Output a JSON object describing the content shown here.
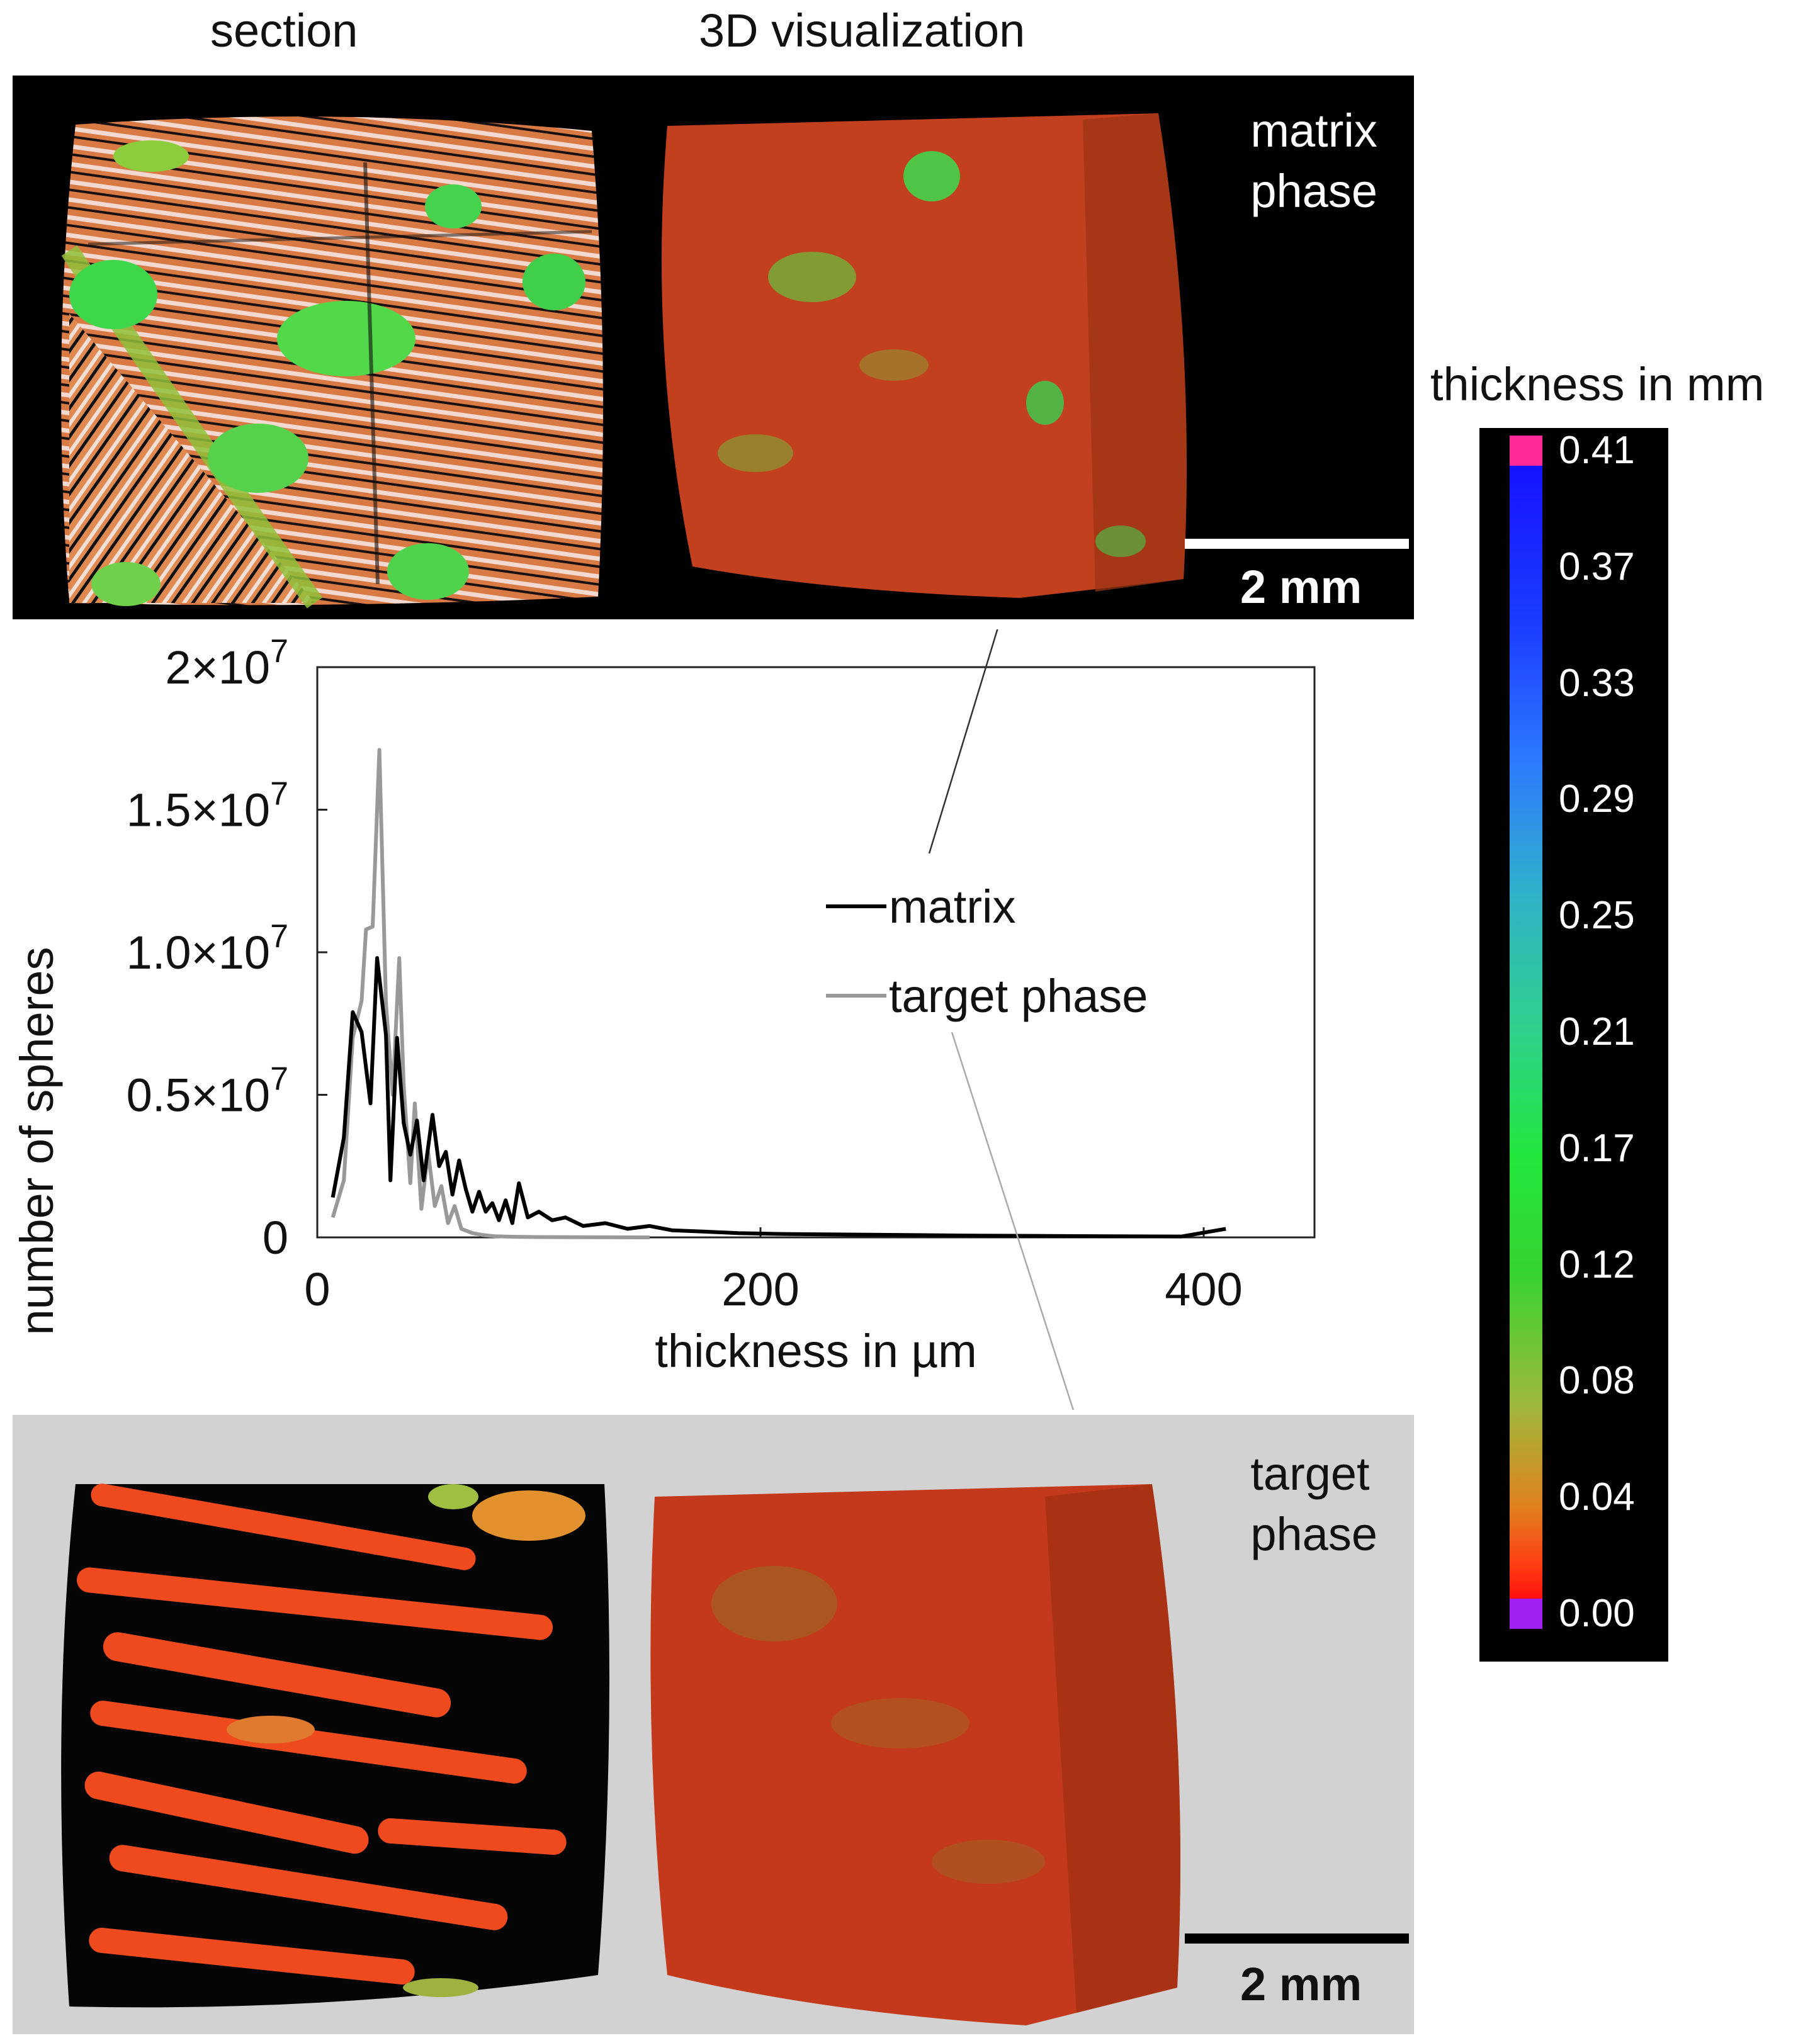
{
  "headers": {
    "section": "section",
    "visualization": "3D visualization"
  },
  "top_panel": {
    "label": "matrix\nphase",
    "scale_bar": "2 mm",
    "colors": {
      "background": "#000000",
      "text": "#ffffff"
    }
  },
  "bottom_panel": {
    "label": "target\nphase",
    "scale_bar": "2 mm",
    "colors": {
      "background": "#d2d2d2",
      "text": "#111111"
    }
  },
  "colorbar": {
    "title": "thickness in mm",
    "ticks": [
      "0.41",
      "0.37",
      "0.33",
      "0.29",
      "0.25",
      "0.21",
      "0.17",
      "0.12",
      "0.08",
      "0.04",
      "0.00"
    ],
    "max_marker_color": "#ff2a9a",
    "min_marker_color": "#a020f0"
  },
  "chart_data": {
    "type": "line",
    "xlabel": "thickness in µm",
    "ylabel": "number of spheres",
    "xlim": [
      0,
      450
    ],
    "ylim": [
      0,
      20000000
    ],
    "xticks": [
      0,
      200,
      400
    ],
    "xtick_labels": [
      "0",
      "200",
      "400"
    ],
    "yticks": [
      0,
      5000000,
      10000000,
      15000000,
      20000000
    ],
    "ytick_labels": [
      {
        "mantissa": "0",
        "exponent": ""
      },
      {
        "mantissa": "0.5×10",
        "exponent": "7"
      },
      {
        "mantissa": "1.0×10",
        "exponent": "7"
      },
      {
        "mantissa": "1.5×10",
        "exponent": "7"
      },
      {
        "mantissa": "2×10",
        "exponent": "7"
      }
    ],
    "grid": false,
    "legend_position": "center-right",
    "series": [
      {
        "name": "matrix",
        "color": "#000000",
        "x": [
          7,
          12,
          16,
          20,
          24,
          27,
          31,
          33,
          36,
          39,
          42,
          45,
          48,
          52,
          55,
          58,
          61,
          64,
          67,
          70,
          73,
          76,
          79,
          82,
          85,
          88,
          91,
          95,
          100,
          106,
          112,
          120,
          130,
          140,
          150,
          160,
          175,
          190,
          210,
          240,
          270,
          300,
          330,
          360,
          390,
          410
        ],
        "y": [
          1400000,
          3500000,
          7900000,
          7200000,
          4700000,
          9800000,
          7100000,
          2000000,
          7000000,
          4000000,
          2900000,
          4100000,
          2000000,
          4300000,
          2500000,
          3000000,
          1500000,
          2700000,
          1700000,
          900000,
          1600000,
          900000,
          1200000,
          600000,
          1300000,
          500000,
          1900000,
          700000,
          900000,
          600000,
          700000,
          400000,
          500000,
          300000,
          400000,
          250000,
          200000,
          150000,
          120000,
          100000,
          80000,
          60000,
          50000,
          40000,
          30000,
          300000
        ]
      },
      {
        "name": "target phase",
        "color": "#999999",
        "x": [
          7,
          12,
          16,
          20,
          22,
          25,
          28,
          31,
          34,
          37,
          39,
          42,
          44,
          47,
          50,
          53,
          56,
          59,
          62,
          65,
          70,
          75,
          80,
          90,
          100,
          120,
          150
        ],
        "y": [
          700000,
          2000000,
          7000000,
          8300000,
          10800000,
          10900000,
          17100000,
          8200000,
          5000000,
          9800000,
          5300000,
          1900000,
          4700000,
          1000000,
          3000000,
          1100000,
          1800000,
          500000,
          1100000,
          300000,
          150000,
          80000,
          40000,
          20000,
          10000,
          5000,
          0
        ]
      }
    ]
  }
}
